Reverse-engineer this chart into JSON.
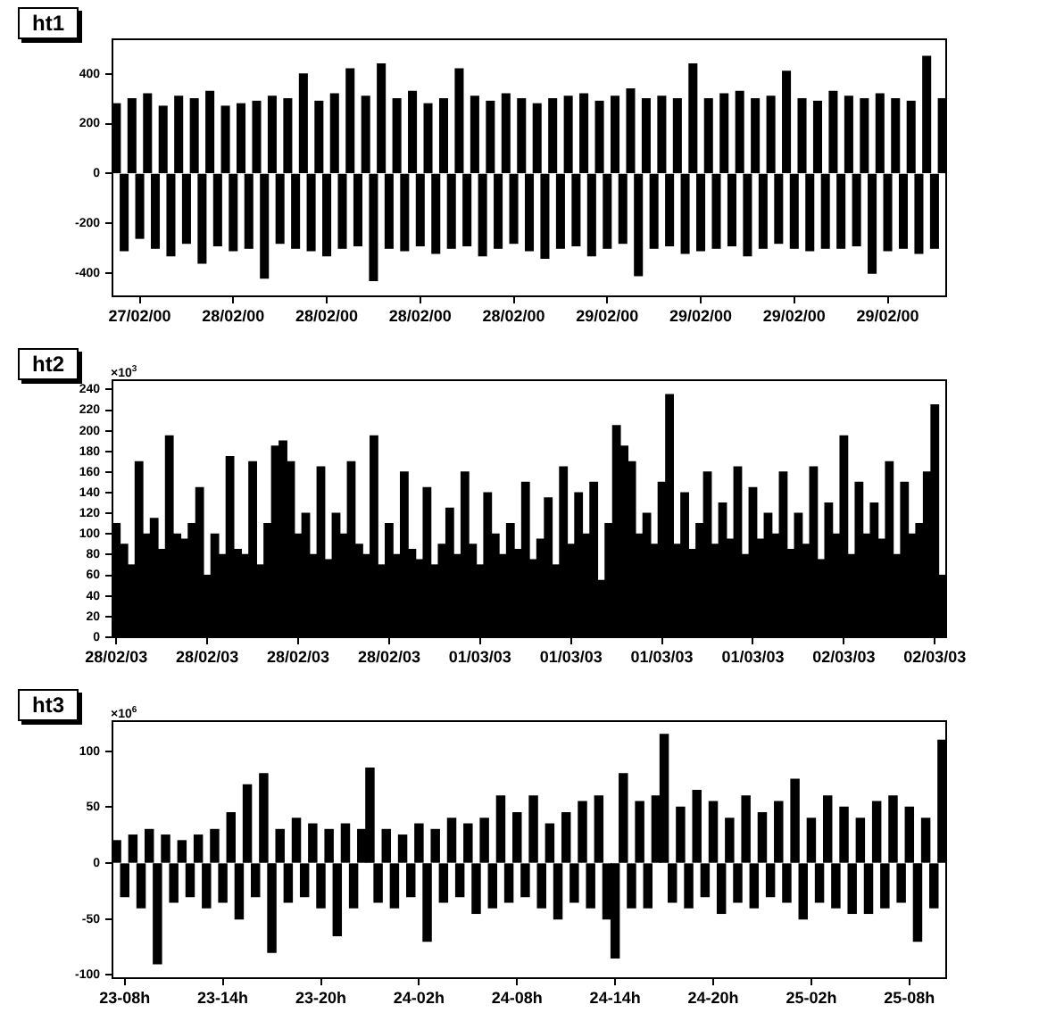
{
  "chart_data": [
    {
      "type": "bar",
      "title": "ht1",
      "color": "#000000",
      "categories": [
        null,
        null,
        null,
        "27/02/00",
        null,
        null,
        null,
        null,
        null,
        null,
        null,
        null,
        null,
        null,
        null,
        "28/02/00",
        null,
        null,
        null,
        null,
        null,
        null,
        null,
        null,
        null,
        null,
        null,
        "28/02/00",
        null,
        null,
        null,
        null,
        null,
        null,
        null,
        null,
        null,
        null,
        null,
        "28/02/00",
        null,
        null,
        null,
        null,
        null,
        null,
        null,
        null,
        null,
        null,
        null,
        "28/02/00",
        null,
        null,
        null,
        null,
        null,
        null,
        null,
        null,
        null,
        null,
        null,
        "29/02/00",
        null,
        null,
        null,
        null,
        null,
        null,
        null,
        null,
        null,
        null,
        null,
        "29/02/00",
        null,
        null,
        null,
        null,
        null,
        null,
        null,
        null,
        null,
        null,
        null,
        "29/02/00",
        null,
        null,
        null,
        null,
        null,
        null,
        null,
        null,
        null,
        null,
        null,
        "29/02/00",
        null,
        null,
        null,
        null,
        null,
        null,
        null
      ],
      "values": [
        280,
        -310,
        300,
        -260,
        320,
        -300,
        270,
        -330,
        310,
        -280,
        300,
        -360,
        330,
        -290,
        270,
        -310,
        280,
        -300,
        290,
        -420,
        310,
        -280,
        300,
        -300,
        400,
        -310,
        290,
        -330,
        320,
        -300,
        420,
        -290,
        310,
        -430,
        440,
        -300,
        300,
        -310,
        330,
        -290,
        280,
        -320,
        300,
        -300,
        420,
        -290,
        310,
        -330,
        290,
        -300,
        320,
        -280,
        300,
        -310,
        280,
        -340,
        300,
        -300,
        310,
        -290,
        320,
        -330,
        290,
        -300,
        310,
        -280,
        340,
        -410,
        300,
        -300,
        310,
        -290,
        300,
        -320,
        440,
        -310,
        300,
        -300,
        320,
        -290,
        330,
        -330,
        300,
        -300,
        310,
        -280,
        410,
        -300,
        300,
        -310,
        290,
        -300,
        330,
        -300,
        310,
        -290,
        300,
        -400,
        320,
        -310,
        300,
        -300,
        290,
        -320,
        470,
        -300,
        300
      ],
      "ylim": [
        -493,
        539
      ],
      "yticks": [
        -400,
        -200,
        0,
        200,
        400
      ]
    },
    {
      "type": "bar",
      "title": "ht2",
      "color": "#000000",
      "annotations": [
        "×10$^{3}$"
      ],
      "categories": [
        "28/02/03",
        null,
        null,
        null,
        null,
        null,
        null,
        null,
        null,
        null,
        null,
        null,
        "28/02/03",
        null,
        null,
        null,
        null,
        null,
        null,
        null,
        null,
        null,
        null,
        null,
        "28/02/03",
        null,
        null,
        null,
        null,
        null,
        null,
        null,
        null,
        null,
        null,
        null,
        "28/02/03",
        null,
        null,
        null,
        null,
        null,
        null,
        null,
        null,
        null,
        null,
        null,
        "01/03/03",
        null,
        null,
        null,
        null,
        null,
        null,
        null,
        null,
        null,
        null,
        null,
        "01/03/03",
        null,
        null,
        null,
        null,
        null,
        null,
        null,
        null,
        null,
        null,
        null,
        "01/03/03",
        null,
        null,
        null,
        null,
        null,
        null,
        null,
        null,
        null,
        null,
        null,
        "01/03/03",
        null,
        null,
        null,
        null,
        null,
        null,
        null,
        null,
        null,
        null,
        null,
        "02/03/03",
        null,
        null,
        null,
        null,
        null,
        null,
        null,
        null,
        null,
        null,
        null,
        "02/03/03",
        null
      ],
      "values": [
        110,
        90,
        70,
        170,
        100,
        115,
        85,
        195,
        100,
        95,
        110,
        145,
        60,
        100,
        80,
        175,
        85,
        80,
        170,
        70,
        110,
        185,
        190,
        170,
        100,
        120,
        80,
        165,
        75,
        120,
        100,
        170,
        90,
        80,
        195,
        70,
        110,
        80,
        160,
        85,
        75,
        145,
        70,
        90,
        125,
        80,
        160,
        90,
        70,
        140,
        100,
        80,
        110,
        85,
        150,
        75,
        95,
        135,
        70,
        165,
        90,
        140,
        100,
        150,
        55,
        110,
        205,
        185,
        170,
        100,
        120,
        90,
        150,
        235,
        90,
        140,
        85,
        110,
        160,
        90,
        130,
        95,
        165,
        80,
        145,
        95,
        120,
        100,
        160,
        85,
        120,
        90,
        165,
        75,
        130,
        100,
        195,
        80,
        150,
        100,
        130,
        95,
        170,
        80,
        150,
        100,
        110,
        160,
        225,
        60
      ],
      "ylim": [
        0,
        249
      ],
      "yticks": [
        0,
        20,
        40,
        60,
        80,
        100,
        120,
        140,
        160,
        180,
        200,
        220,
        240
      ]
    },
    {
      "type": "bar",
      "title": "ht3",
      "color": "#000000",
      "annotations": [
        "×10$^{6}$"
      ],
      "categories": [
        null,
        "23-08h",
        null,
        null,
        null,
        null,
        null,
        null,
        null,
        null,
        null,
        null,
        null,
        "23-14h",
        null,
        null,
        null,
        null,
        null,
        null,
        null,
        null,
        null,
        null,
        null,
        "23-20h",
        null,
        null,
        null,
        null,
        null,
        null,
        null,
        null,
        null,
        null,
        null,
        "24-02h",
        null,
        null,
        null,
        null,
        null,
        null,
        null,
        null,
        null,
        null,
        null,
        "24-08h",
        null,
        null,
        null,
        null,
        null,
        null,
        null,
        null,
        null,
        null,
        null,
        "24-14h",
        null,
        null,
        null,
        null,
        null,
        null,
        null,
        null,
        null,
        null,
        null,
        "24-20h",
        null,
        null,
        null,
        null,
        null,
        null,
        null,
        null,
        null,
        null,
        null,
        "25-02h",
        null,
        null,
        null,
        null,
        null,
        null,
        null,
        null,
        null,
        null,
        null,
        "25-08h",
        null,
        null,
        null,
        null
      ],
      "values": [
        20,
        -30,
        25,
        -40,
        30,
        -90,
        25,
        -35,
        20,
        -30,
        25,
        -40,
        30,
        -35,
        45,
        -50,
        70,
        -30,
        80,
        -80,
        30,
        -35,
        40,
        -30,
        35,
        -40,
        30,
        -65,
        35,
        -40,
        30,
        85,
        -35,
        30,
        -40,
        25,
        -30,
        35,
        -70,
        30,
        -35,
        40,
        -30,
        35,
        -45,
        40,
        -40,
        60,
        -35,
        45,
        -30,
        60,
        -40,
        35,
        -50,
        45,
        -35,
        55,
        -40,
        60,
        -50,
        -85,
        80,
        -40,
        55,
        -40,
        60,
        115,
        -35,
        50,
        -40,
        65,
        -30,
        55,
        -45,
        40,
        -35,
        60,
        -40,
        45,
        -30,
        55,
        -35,
        75,
        -50,
        40,
        -35,
        60,
        -40,
        50,
        -45,
        40,
        -45,
        55,
        -40,
        60,
        -35,
        50,
        -70,
        40,
        -40,
        110
      ],
      "ylim": [
        -103,
        127
      ],
      "yticks": [
        -100,
        -50,
        0,
        50,
        100
      ]
    }
  ]
}
